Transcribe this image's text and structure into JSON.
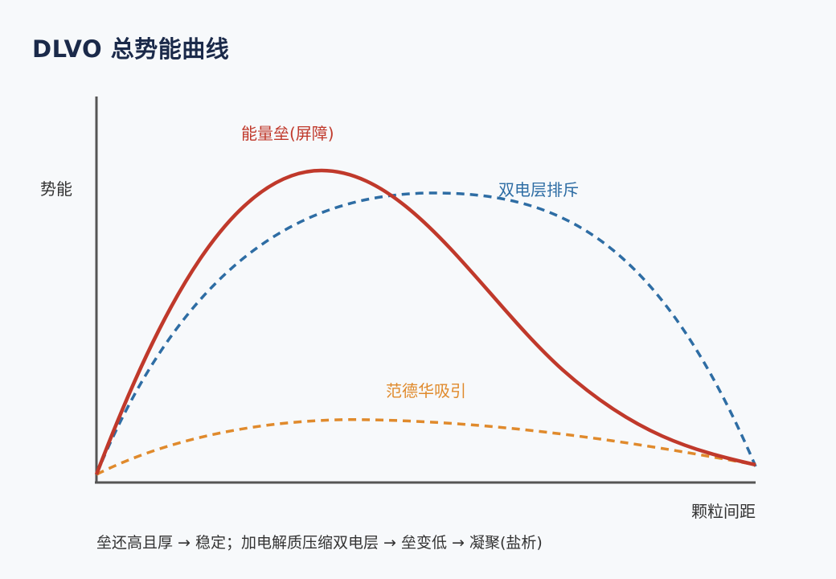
{
  "title": "DLVO 总势能曲线",
  "axes": {
    "y_label": "势能",
    "x_label": "颗粒间距"
  },
  "curves": {
    "barrier": {
      "label": "能量垒(屏障)",
      "color": "#c0392b",
      "style": "solid"
    },
    "repulsion": {
      "label": "双电层排斥",
      "color": "#2e6da4",
      "style": "dashed"
    },
    "attraction": {
      "label": "范德华吸引",
      "color": "#e08a2c",
      "style": "dashed"
    }
  },
  "note": "垒还高且厚 → 稳定；加电解质压缩双电层 → 垒变低 → 凝聚(盐析)",
  "colors": {
    "title": "#1b2a4a",
    "axis": "#555555",
    "text": "#333333",
    "background": "#f7f9fb"
  }
}
